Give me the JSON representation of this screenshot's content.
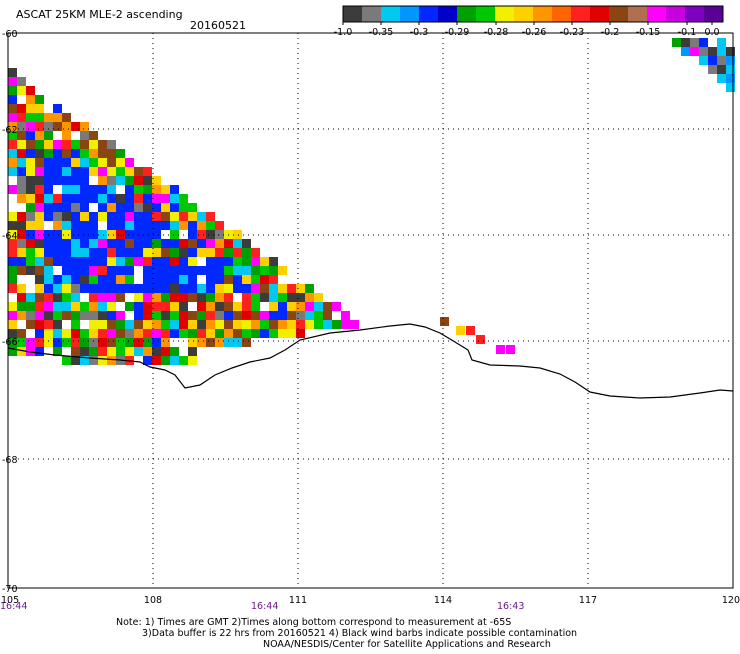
{
  "header": {
    "title": "ASCAT 25KM MLE-2 ascending",
    "date": "20160521"
  },
  "colorbar": {
    "colors": [
      "#3c3c3c",
      "#7a7a7a",
      "#00c8f0",
      "#0096ff",
      "#0028ff",
      "#0000c8",
      "#00a000",
      "#00c800",
      "#f0f000",
      "#ffd000",
      "#ff9600",
      "#ff6400",
      "#ff2020",
      "#e00000",
      "#8b4513",
      "#b07050",
      "#ff00ff",
      "#c800e0",
      "#8000c0",
      "#5a0096"
    ],
    "labels": [
      "-1.0",
      "-0.35",
      "-0.3",
      "-0.29",
      "-0.28",
      "-0.26",
      "-0.23",
      "-0.2",
      "-0.15",
      "-0.1",
      "0.0"
    ]
  },
  "map": {
    "lon_ticks": [
      "105",
      "108",
      "111",
      "114",
      "117",
      "120"
    ],
    "lat_ticks": [
      "-60",
      "-62",
      "-64",
      "-66",
      "-68",
      "-70"
    ],
    "times": [
      "16:44",
      "16:44",
      "16:43"
    ],
    "coast_color": "#000000",
    "grid_color": "#000000"
  },
  "notes": {
    "line1": "Note: 1) Times are GMT 2)Times along bottom correspond to measurement at -65S",
    "line2": "3)Data buffer is 22 hrs from 20160521 4) Black wind barbs indicate possible contamination",
    "line3": "NOAA/NESDIS/Center for Satellite Applications and Research"
  }
}
